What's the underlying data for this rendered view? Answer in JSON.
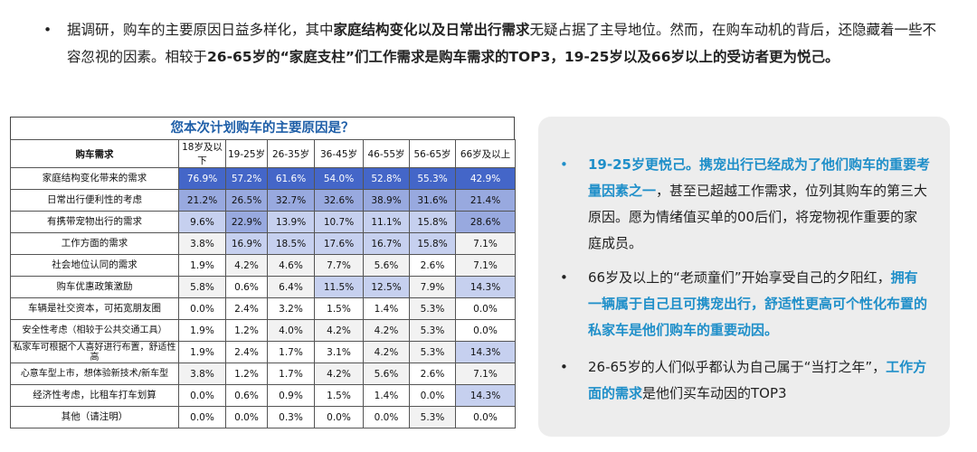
{
  "intro": {
    "bullet": "•",
    "seg1": "据调研，购车的主要原因日益多样化，其中",
    "seg2": "家庭结构变化以及日常出行需求",
    "seg3": "无疑占据了主导地位。然而，在购车动机的背后，还隐藏着一些不容忽视的因素。相较于",
    "seg4": "26-65岁的“家庭支柱”们工作需求是购车需求的TOP3，19-25岁以及66岁以上的受访者更为悦己。"
  },
  "table": {
    "title": "您本次计划购车的主要原因是？",
    "row_header": "购车需求",
    "columns": [
      "18岁及以下",
      "19-25岁",
      "26-35岁",
      "36-45岁",
      "46-55岁",
      "56-65岁",
      "66岁及以上"
    ],
    "rows": [
      {
        "label": "家庭结构变化带来的需求",
        "values": [
          "76.9%",
          "57.2%",
          "61.6%",
          "54.0%",
          "52.8%",
          "55.3%",
          "42.9%"
        ]
      },
      {
        "label": "日常出行便利性的考虑",
        "values": [
          "21.2%",
          "26.5%",
          "32.7%",
          "32.6%",
          "38.9%",
          "31.6%",
          "21.4%"
        ]
      },
      {
        "label": "有携带宠物出行的需求",
        "values": [
          "9.6%",
          "22.9%",
          "13.9%",
          "10.7%",
          "11.1%",
          "15.8%",
          "28.6%"
        ]
      },
      {
        "label": "工作方面的需求",
        "values": [
          "3.8%",
          "16.9%",
          "18.5%",
          "17.6%",
          "16.7%",
          "15.8%",
          "7.1%"
        ]
      },
      {
        "label": "社会地位认同的需求",
        "values": [
          "1.9%",
          "4.2%",
          "4.6%",
          "7.7%",
          "5.6%",
          "2.6%",
          "7.1%"
        ]
      },
      {
        "label": "购车优惠政策激励",
        "values": [
          "5.8%",
          "0.6%",
          "6.4%",
          "11.5%",
          "12.5%",
          "7.9%",
          "14.3%"
        ]
      },
      {
        "label": "车辆是社交资本，可拓宽朋友圈",
        "values": [
          "0.0%",
          "2.4%",
          "3.2%",
          "1.5%",
          "1.4%",
          "5.3%",
          "0.0%"
        ]
      },
      {
        "label": "安全性考虑（相较于公共交通工具）",
        "values": [
          "1.9%",
          "1.2%",
          "4.0%",
          "4.2%",
          "4.2%",
          "5.3%",
          "0.0%"
        ]
      },
      {
        "label": "私家车可根据个人喜好进行布置，舒适性高",
        "values": [
          "1.9%",
          "2.4%",
          "1.7%",
          "3.1%",
          "4.2%",
          "5.3%",
          "14.3%"
        ]
      },
      {
        "label": "心意车型上市，想体验新技术/新车型",
        "values": [
          "3.8%",
          "1.2%",
          "1.7%",
          "4.2%",
          "5.6%",
          "2.6%",
          "7.1%"
        ]
      },
      {
        "label": "经济性考虑，比租车打车划算",
        "values": [
          "0.0%",
          "0.6%",
          "0.9%",
          "1.5%",
          "1.4%",
          "0.0%",
          "14.3%"
        ]
      },
      {
        "label": "其他（请注明）",
        "values": [
          "0.0%",
          "0.0%",
          "0.3%",
          "0.0%",
          "0.0%",
          "5.3%",
          "0.0%"
        ]
      }
    ]
  },
  "panel": {
    "bullet": "•",
    "b1_hl": "19-25岁更悦己。携宠出行已经成为了他们购车的重要考量因素之一",
    "b1_rest": "，甚至已超越工作需求，位列其购车的第三大原因。愿为情绪值买单的00后们，将宠物视作重要的家庭成员。",
    "b2_pre": "66岁及以上的“老顽童们”开始享受自己的夕阳红，",
    "b2_hl": "拥有一辆属于自己且可携宠出行，舒适性更高可个性化布置的私家车是他们购车的重要动因。",
    "b3_pre": "26-65岁的人们似乎都认为自己属于“当打之年”，",
    "b3_hl": "工作方面的需求",
    "b3_post": "是他们买车动因的TOP3"
  },
  "colors": {
    "dark": "#4466c8",
    "mid": "#98a9df",
    "light": "#c6d0ef",
    "grey": "#f2f2f2",
    "accent": "#1f8fc9",
    "title": "#1f5fa8"
  }
}
